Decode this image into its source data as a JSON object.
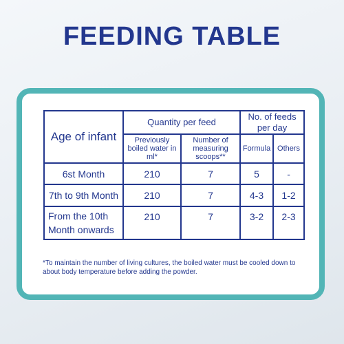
{
  "title": "FEEDING TABLE",
  "table": {
    "age_header": "Age of infant",
    "quantity_header": "Quantity per feed",
    "feeds_header": "No. of feeds per day",
    "water_header": "Previously boiled water in ml*",
    "scoops_header": "Number of measuring scoops**",
    "formula_header": "Formula",
    "others_header": "Others",
    "rows": [
      {
        "age": "6st Month",
        "water": "210",
        "scoops": "7",
        "formula": "5",
        "others": "-"
      },
      {
        "age": "7th to 9th Month",
        "water": "210",
        "scoops": "7",
        "formula": "4-3",
        "others": "1-2"
      },
      {
        "age": "From the 10th Month onwards",
        "water": "210",
        "scoops": "7",
        "formula": "3-2",
        "others": "2-3"
      }
    ]
  },
  "footnote": "*To maintain the number of living cultures, the boiled water must be cooled down to about body temperature before adding the powder.",
  "colors": {
    "navy": "#23378e",
    "teal": "#52b5b6"
  }
}
